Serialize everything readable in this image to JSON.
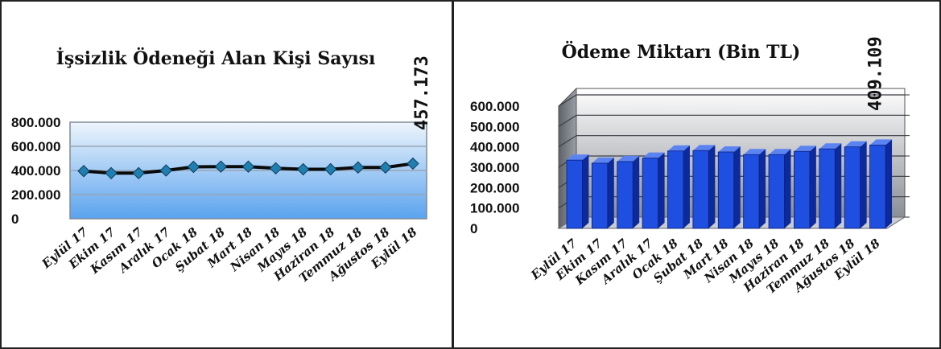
{
  "chart_data": [
    {
      "type": "line",
      "title": "İşsizlik Ödeneği Alan Kişi Sayısı",
      "xlabel": "",
      "ylabel": "",
      "categories": [
        "Eylül 17",
        "Ekim 17",
        "Kasım 17",
        "Aralık 17",
        "Ocak 18",
        "Şubat 18",
        "Mart 18",
        "Nisan 18",
        "Mayıs 18",
        "Haziran 18",
        "Temmuz 18",
        "Ağustos 18",
        "Eylül 18"
      ],
      "values": [
        395000,
        378000,
        378000,
        400000,
        430000,
        432000,
        432000,
        418000,
        410000,
        410000,
        425000,
        425000,
        457173
      ],
      "ylim": [
        0,
        800000
      ],
      "yticks": [
        "0",
        "200.000",
        "400.000",
        "600.000",
        "800.000"
      ],
      "data_label": "457.173",
      "grid": true,
      "colors": {
        "line": "#0a0a0a",
        "marker": "#1f7fb0",
        "plot_top": "#eef5fc",
        "plot_bottom": "#5aa3ee"
      }
    },
    {
      "type": "bar",
      "title": "Ödeme Miktarı (Bin TL)",
      "xlabel": "",
      "ylabel": "",
      "categories": [
        "Eylül 17",
        "Ekim 17",
        "Kasım 17",
        "Aralık 17",
        "Ocak 18",
        "Şubat 18",
        "Mart 18",
        "Nisan 18",
        "Mayıs 18",
        "Haziran 18",
        "Temmuz 18",
        "Ağustos 18",
        "Eylül 18"
      ],
      "values": [
        335000,
        320000,
        328000,
        345000,
        380000,
        382000,
        375000,
        362000,
        362000,
        378000,
        390000,
        400000,
        409109
      ],
      "ylim": [
        0,
        600000
      ],
      "yticks": [
        "0",
        "100.000",
        "200.000",
        "300.000",
        "400.000",
        "500.000",
        "600.000"
      ],
      "data_label": "409.109",
      "grid": true,
      "colors": {
        "bar_front": "#1f4fe0",
        "bar_side": "#0d2a9c",
        "bar_top": "#5b83f2",
        "wall_top": "#ffffff",
        "wall_bottom": "#8a8e96"
      }
    }
  ]
}
